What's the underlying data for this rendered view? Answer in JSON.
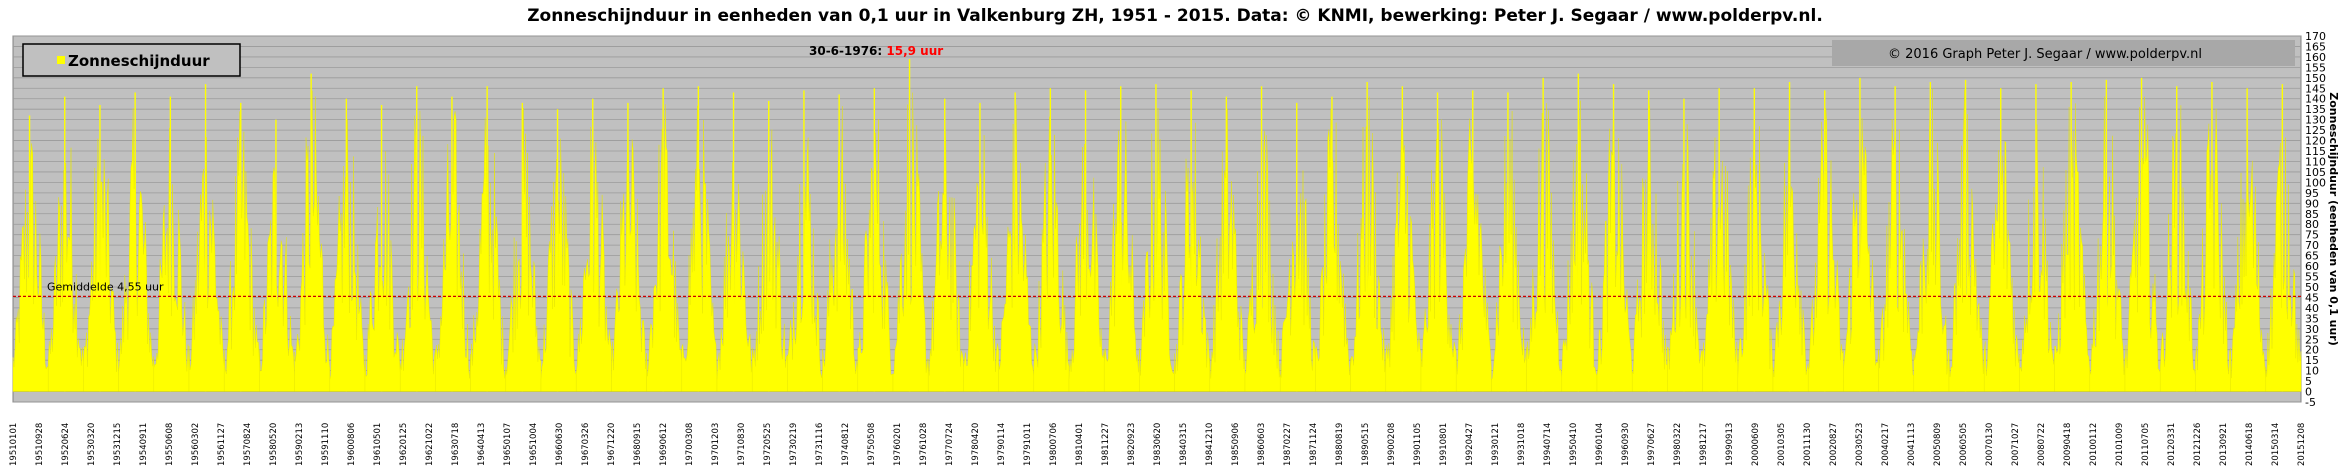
{
  "chart_data": {
    "type": "area",
    "title": "Zonneschijnduur  in eenheden van 0,1 uur in Valkenburg ZH, 1951 - 2015. Data: © KNMI, bewerking: Peter J. Segaar / www.polderpv.nl.",
    "ylabel": "Zonneschijnduur (eenheden van 0,1 uur)",
    "xlabel": "",
    "ylim": [
      -5,
      170
    ],
    "yticks": [
      -5,
      0,
      5,
      10,
      15,
      20,
      25,
      30,
      35,
      40,
      45,
      50,
      55,
      60,
      65,
      70,
      75,
      80,
      85,
      90,
      95,
      100,
      105,
      110,
      115,
      120,
      125,
      130,
      135,
      140,
      145,
      150,
      155,
      160,
      165,
      170
    ],
    "grid": true,
    "legend_position": "top-left",
    "series": [
      {
        "name": "Zonneschijnduur",
        "color": "#ffff00",
        "yearly_peaks": [
          {
            "year": 1951,
            "peak": 132
          },
          {
            "year": 1952,
            "peak": 141
          },
          {
            "year": 1953,
            "peak": 137
          },
          {
            "year": 1954,
            "peak": 143
          },
          {
            "year": 1955,
            "peak": 141
          },
          {
            "year": 1956,
            "peak": 147
          },
          {
            "year": 1957,
            "peak": 138
          },
          {
            "year": 1958,
            "peak": 130
          },
          {
            "year": 1959,
            "peak": 152
          },
          {
            "year": 1960,
            "peak": 140
          },
          {
            "year": 1961,
            "peak": 137
          },
          {
            "year": 1962,
            "peak": 146
          },
          {
            "year": 1963,
            "peak": 141
          },
          {
            "year": 1964,
            "peak": 146
          },
          {
            "year": 1965,
            "peak": 138
          },
          {
            "year": 1966,
            "peak": 135
          },
          {
            "year": 1967,
            "peak": 140
          },
          {
            "year": 1968,
            "peak": 138
          },
          {
            "year": 1969,
            "peak": 145
          },
          {
            "year": 1970,
            "peak": 146
          },
          {
            "year": 1971,
            "peak": 143
          },
          {
            "year": 1972,
            "peak": 139
          },
          {
            "year": 1973,
            "peak": 144
          },
          {
            "year": 1974,
            "peak": 142
          },
          {
            "year": 1975,
            "peak": 145
          },
          {
            "year": 1976,
            "peak": 159
          },
          {
            "year": 1977,
            "peak": 140
          },
          {
            "year": 1978,
            "peak": 138
          },
          {
            "year": 1979,
            "peak": 143
          },
          {
            "year": 1980,
            "peak": 145
          },
          {
            "year": 1981,
            "peak": 144
          },
          {
            "year": 1982,
            "peak": 146
          },
          {
            "year": 1983,
            "peak": 147
          },
          {
            "year": 1984,
            "peak": 144
          },
          {
            "year": 1985,
            "peak": 141
          },
          {
            "year": 1986,
            "peak": 146
          },
          {
            "year": 1987,
            "peak": 138
          },
          {
            "year": 1988,
            "peak": 141
          },
          {
            "year": 1989,
            "peak": 148
          },
          {
            "year": 1990,
            "peak": 146
          },
          {
            "year": 1991,
            "peak": 143
          },
          {
            "year": 1992,
            "peak": 144
          },
          {
            "year": 1993,
            "peak": 143
          },
          {
            "year": 1994,
            "peak": 150
          },
          {
            "year": 1995,
            "peak": 152
          },
          {
            "year": 1996,
            "peak": 147
          },
          {
            "year": 1997,
            "peak": 144
          },
          {
            "year": 1998,
            "peak": 140
          },
          {
            "year": 1999,
            "peak": 145
          },
          {
            "year": 2000,
            "peak": 145
          },
          {
            "year": 2001,
            "peak": 148
          },
          {
            "year": 2002,
            "peak": 144
          },
          {
            "year": 2003,
            "peak": 150
          },
          {
            "year": 2004,
            "peak": 146
          },
          {
            "year": 2005,
            "peak": 148
          },
          {
            "year": 2006,
            "peak": 149
          },
          {
            "year": 2007,
            "peak": 145
          },
          {
            "year": 2008,
            "peak": 147
          },
          {
            "year": 2009,
            "peak": 148
          },
          {
            "year": 2010,
            "peak": 149
          },
          {
            "year": 2011,
            "peak": 150
          },
          {
            "year": 2012,
            "peak": 146
          },
          {
            "year": 2013,
            "peak": 148
          },
          {
            "year": 2014,
            "peak": 145
          },
          {
            "year": 2015,
            "peak": 147
          }
        ]
      }
    ],
    "average": {
      "label": "Gemiddelde 4,55 uur",
      "value": 45.5,
      "color": "#cc0000"
    },
    "annotation": {
      "label": "30-6-1976: ",
      "value": "15,9 uur"
    },
    "copyright": "© 2016 Graph  Peter J. Segaar / www.polderpv.nl",
    "x_start_year": 1951,
    "x_end_year": 2015,
    "xtick_labels": [
      "19510101",
      "19510928",
      "19520624",
      "19530320",
      "19531215",
      "19540911",
      "19550608",
      "19560302",
      "19561127",
      "19570824",
      "19580520",
      "19590213",
      "19591110",
      "19600806",
      "19610501",
      "19620125",
      "19621022",
      "19630718",
      "19640413",
      "19650107",
      "19651004",
      "19660630",
      "19670326",
      "19671220",
      "19680915",
      "19690612",
      "19700308",
      "19701203",
      "19710830",
      "19720525",
      "19730219",
      "19731116",
      "19740812",
      "19750508",
      "19760201",
      "19761028",
      "19770724",
      "19780420",
      "19790114",
      "19791011",
      "19800706",
      "19810401",
      "19811227",
      "19820923",
      "19830620",
      "19840315",
      "19841210",
      "19850906",
      "19860603",
      "19870227",
      "19871124",
      "19880819",
      "19890515",
      "19900208",
      "19901105",
      "19910801",
      "19920427",
      "19930121",
      "19931018",
      "19940714",
      "19950410",
      "19960104",
      "19960930",
      "19970627",
      "19980322",
      "19981217",
      "19990913",
      "20000609",
      "20010305",
      "20011130",
      "20020827",
      "20030523",
      "20040217",
      "20041113",
      "20050809",
      "20060505",
      "20070130",
      "20071027",
      "20080722",
      "20090418",
      "20100112",
      "20101009",
      "20110705",
      "20120331",
      "20121226",
      "20130921",
      "20140618",
      "20150314",
      "20151208"
    ]
  }
}
